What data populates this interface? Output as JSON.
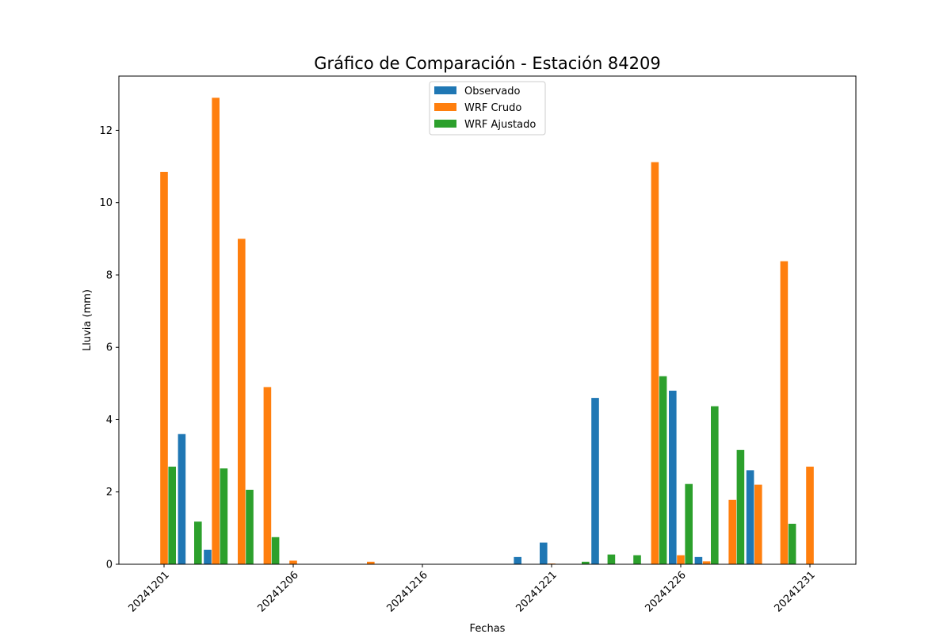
{
  "chart_data": {
    "type": "bar",
    "title": "Gráfico de Comparación - Estación 84209",
    "xlabel": "Fechas",
    "ylabel": "Lluvia (mm)",
    "ylim": [
      0,
      13.5
    ],
    "yticks": [
      0,
      2,
      4,
      6,
      8,
      10,
      12
    ],
    "x_tick_labels": [
      {
        "label": "20241201",
        "x": 0
      },
      {
        "label": "20241206",
        "x": 5
      },
      {
        "label": "20241216",
        "x": 10
      },
      {
        "label": "20241221",
        "x": 15
      },
      {
        "label": "20241226",
        "x": 20
      },
      {
        "label": "20241231",
        "x": 25
      }
    ],
    "x": [
      0,
      1,
      2,
      3,
      4,
      5,
      6,
      7,
      8,
      9,
      10,
      11,
      12,
      13,
      14,
      15,
      16,
      17,
      18,
      19,
      20,
      21,
      22,
      23,
      24,
      25,
      26
    ],
    "series": [
      {
        "name": "Observado",
        "color": "#1f77b4",
        "values": [
          0,
          3.6,
          0.4,
          0,
          0,
          0,
          0,
          0,
          0,
          0,
          0,
          0,
          0,
          0,
          0.2,
          0.6,
          0,
          4.6,
          0,
          0,
          4.8,
          0.2,
          0,
          2.6,
          0,
          0,
          0
        ]
      },
      {
        "name": "WRF Crudo",
        "color": "#ff7f0e",
        "values": [
          10.85,
          0,
          12.9,
          9.0,
          4.9,
          0.1,
          0,
          0,
          0.07,
          0,
          0,
          0,
          0,
          0,
          0,
          0.02,
          0,
          0,
          0,
          11.12,
          0.25,
          0.08,
          1.78,
          2.2,
          8.38,
          2.7,
          0
        ]
      },
      {
        "name": "WRF Ajustado",
        "color": "#2ca02c",
        "values": [
          2.7,
          1.18,
          2.65,
          2.06,
          0.75,
          0,
          0,
          0,
          0,
          0,
          0,
          0,
          0,
          0,
          0,
          0,
          0.07,
          0.27,
          0.25,
          5.2,
          2.22,
          4.37,
          3.16,
          0,
          1.12,
          0,
          0
        ]
      }
    ],
    "legend_position": "upper-center",
    "grid": false
  }
}
